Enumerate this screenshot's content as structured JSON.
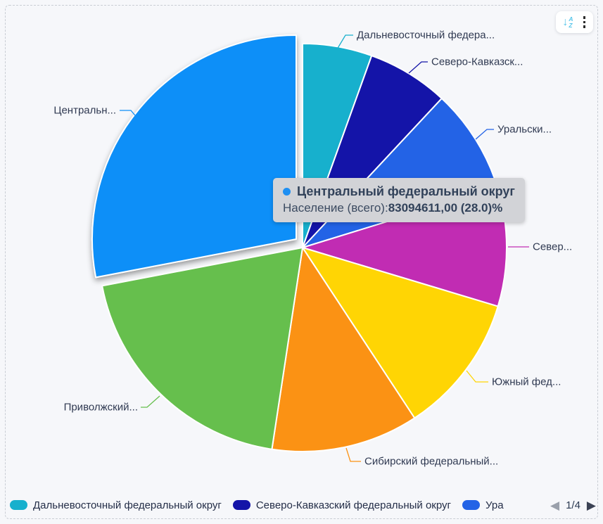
{
  "panel": {
    "background": "#f6f7fa",
    "dashed_border_color": "#c9cdd4"
  },
  "toolbar": {
    "icons": [
      {
        "name": "sort-az-icon",
        "color": "#58c6ea"
      },
      {
        "name": "more-options-kebab-icon",
        "color": "#2b2b2b"
      }
    ]
  },
  "tooltip": {
    "bullet_color": "#1e8ff2",
    "series": "Центральный федеральный округ",
    "metric_label": "Население (всего):",
    "value": "83094611,00 (28.0)%",
    "background": "#d2d3d7"
  },
  "chart_data": {
    "type": "pie",
    "metric": "Население (всего)",
    "start_angle_deg": 0,
    "legend_position": "bottom",
    "percent_source": "Центральный = 28.0% shown in tooltip; other shares estimated from slice angles",
    "slices": [
      {
        "callout_label": "Дальневосточный федера...",
        "legend_label": "Дальневосточный федеральный округ",
        "percent": 5.5,
        "color": "#17b0cd"
      },
      {
        "callout_label": "Северо-Кавказск...",
        "legend_label": "Северо-Кавказский федеральный округ",
        "percent": 6.45,
        "color": "#1414a8"
      },
      {
        "callout_label": "Уральски...",
        "legend_label": "Ура",
        "percent": 8.3,
        "color": "#2363e6"
      },
      {
        "callout_label": "Север...",
        "percent": 9.4,
        "color": "#c12cb3"
      },
      {
        "callout_label": "Южный фед...",
        "percent": 11.1,
        "color": "#ffd504"
      },
      {
        "callout_label": "Сибирский федеральный...",
        "percent": 11.65,
        "color": "#fb9214"
      },
      {
        "callout_label": "Приволжский...",
        "percent": 19.6,
        "color": "#66bf4d"
      },
      {
        "callout_label": "Центральн...",
        "full_label": "Центральный федеральный округ",
        "percent": 28.0,
        "value": "83094611,00",
        "color": "#0f8ff8",
        "exploded": true
      }
    ]
  },
  "legend": {
    "items": [
      {
        "label": "Дальневосточный федеральный округ",
        "color": "#17b0cd"
      },
      {
        "label": "Северо-Кавказский федеральный округ",
        "color": "#1414a8"
      },
      {
        "label": "Ура",
        "color": "#2363e6"
      }
    ],
    "pagination": {
      "page_indicator": "1/4",
      "prev_enabled": false,
      "next_enabled": true
    }
  }
}
